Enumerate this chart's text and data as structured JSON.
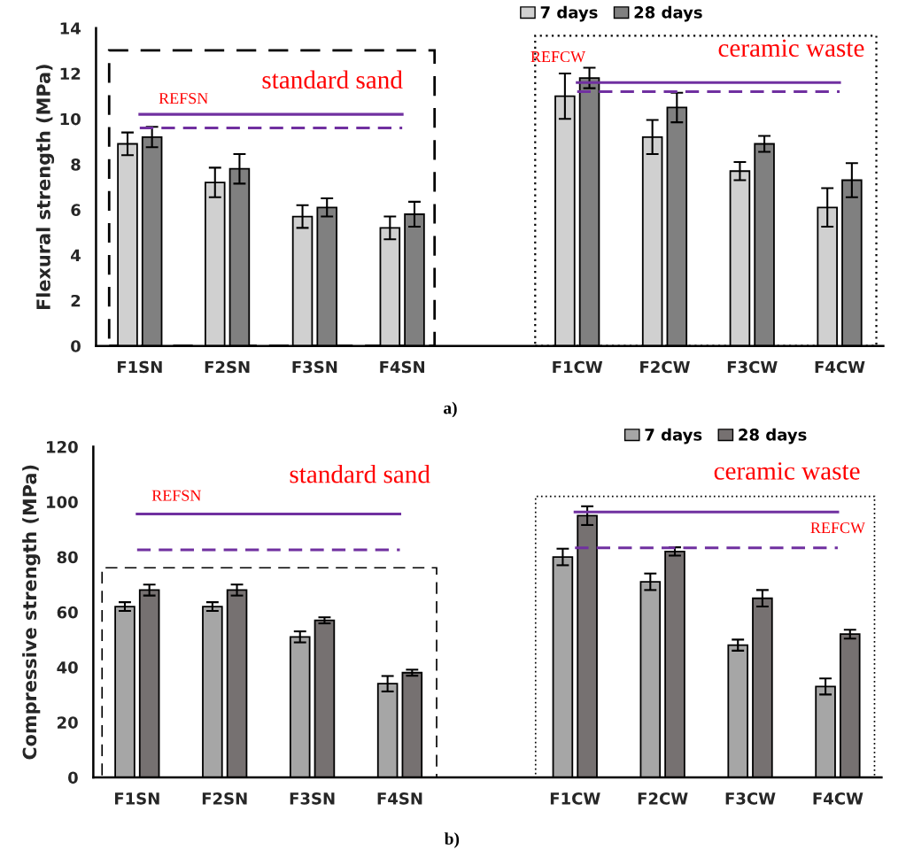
{
  "chart_data": [
    {
      "type": "bar",
      "ylabel": "Flexural strength (MPa)",
      "categories": [
        "F1SN",
        "F2SN",
        "F3SN",
        "F4SN",
        null,
        "F1CW",
        "F2CW",
        "F3CW",
        "F4CW"
      ],
      "ylim": [
        0,
        14
      ],
      "yticks": [
        0,
        2,
        4,
        6,
        8,
        10,
        12,
        14
      ],
      "legend": "top right",
      "grid": false,
      "series": [
        {
          "name": "7 days",
          "color": "#d0d0d0",
          "values": [
            8.9,
            7.2,
            5.7,
            5.2,
            null,
            11.0,
            9.2,
            7.7,
            6.1
          ],
          "errors": [
            0.5,
            0.65,
            0.5,
            0.5,
            null,
            1.0,
            0.75,
            0.4,
            0.85
          ]
        },
        {
          "name": "28 days",
          "color": "#808080",
          "values": [
            9.2,
            7.8,
            6.1,
            5.8,
            null,
            11.8,
            10.5,
            8.9,
            7.3
          ],
          "errors": [
            0.45,
            0.65,
            0.4,
            0.55,
            null,
            0.45,
            0.65,
            0.35,
            0.75
          ]
        },
        {
          "type": "line",
          "name": "REFSN",
          "color": "#7030a0",
          "line_style": "solid",
          "values": [
            10.2,
            10.2,
            10.2,
            10.2,
            null,
            null,
            null,
            null,
            null
          ]
        },
        {
          "type": "line",
          "color": "#7030a0",
          "line_style": "dashed",
          "values": [
            9.6,
            9.6,
            9.6,
            9.6,
            null,
            null,
            null,
            null,
            null
          ]
        },
        {
          "type": "line",
          "name": "REFCW",
          "color": "#7030a0",
          "line_style": "solid",
          "values": [
            null,
            null,
            null,
            null,
            null,
            11.6,
            11.6,
            11.6,
            11.6
          ]
        },
        {
          "type": "line",
          "color": "#7030a0",
          "line_style": "dashed",
          "values": [
            null,
            null,
            null,
            null,
            null,
            11.2,
            11.2,
            11.2,
            11.2
          ]
        }
      ],
      "annotations": [
        "standard sand",
        "ceramic waste",
        "a)"
      ]
    },
    {
      "type": "bar",
      "ylabel": "Compressive strength (MPa)",
      "categories": [
        "F1SN",
        "F2SN",
        "F3SN",
        "F4SN",
        null,
        "F1CW",
        "F2CW",
        "F3CW",
        "F4CW"
      ],
      "ylim": [
        0,
        120
      ],
      "yticks": [
        0,
        20,
        40,
        60,
        80,
        100,
        120
      ],
      "legend": "top right",
      "grid": false,
      "series": [
        {
          "name": "7 days",
          "color": "#a6a6a6",
          "values": [
            62,
            62,
            51,
            34,
            null,
            80,
            71,
            48,
            33
          ],
          "errors": [
            1.6,
            1.6,
            2,
            2.8,
            null,
            3,
            3,
            2,
            2.9
          ]
        },
        {
          "name": "28 days",
          "color": "#767171",
          "values": [
            68,
            68,
            57,
            38,
            null,
            95,
            82,
            65,
            52
          ],
          "errors": [
            2,
            2,
            1.1,
            1.1,
            null,
            3.4,
            1.5,
            3,
            1.6
          ]
        },
        {
          "type": "line",
          "name": "REFSN",
          "color": "#7030a0",
          "line_style": "solid",
          "values": [
            95.6,
            95.6,
            95.6,
            95.6,
            null,
            null,
            null,
            null,
            null
          ]
        },
        {
          "type": "line",
          "color": "#7030a0",
          "line_style": "dashed",
          "values": [
            82.6,
            82.6,
            82.6,
            82.6,
            null,
            null,
            null,
            null,
            null
          ]
        },
        {
          "type": "line",
          "name": "REFCW",
          "color": "#7030a0",
          "line_style": "solid",
          "values": [
            null,
            null,
            null,
            null,
            null,
            96.3,
            96.3,
            96.3,
            96.3
          ]
        },
        {
          "type": "line",
          "color": "#7030a0",
          "line_style": "dashed",
          "values": [
            null,
            null,
            null,
            null,
            null,
            83.3,
            83.3,
            83.3,
            83.3
          ]
        }
      ],
      "annotations": [
        "standard sand",
        "ceramic waste",
        "b)"
      ]
    }
  ]
}
